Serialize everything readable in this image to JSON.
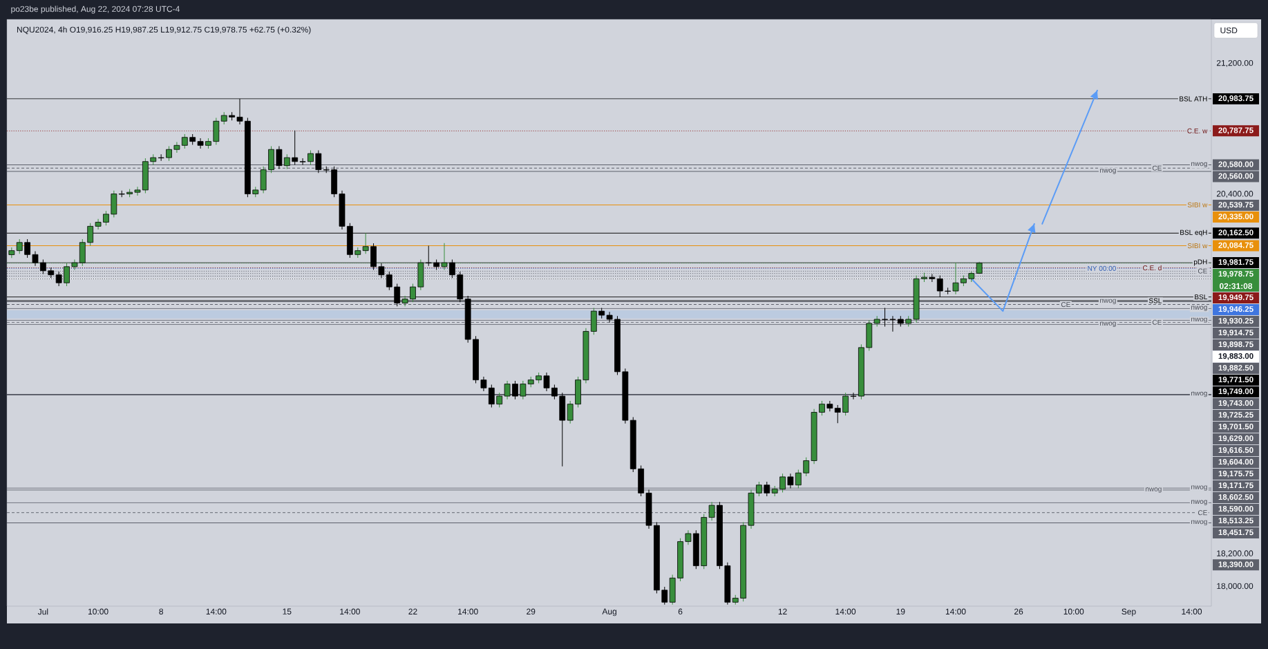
{
  "chart_data": {
    "type": "candlestick",
    "title": "NQU2024, 4h  O19,916.25  H19,987.25  L19,912.75  C19,978.75  +62.75 (+0.32%)",
    "subtitle": "po23be published, Aug 22, 2024 07:28 UTC-4",
    "ylabel": "USD",
    "ylim": [
      17880,
      21470
    ],
    "yticks": [
      {
        "value": 18000,
        "label": "18,000.00"
      },
      {
        "value": 18200,
        "label": "18,200.00"
      },
      {
        "value": 20400,
        "label": "20,400.00"
      },
      {
        "value": 21200,
        "label": "21,200.00"
      }
    ],
    "categories": [
      null,
      null,
      null,
      null,
      "Jul",
      null,
      null,
      null,
      null,
      null,
      null,
      "10:00",
      null,
      null,
      null,
      null,
      null,
      null,
      null,
      "8",
      null,
      null,
      null,
      null,
      null,
      null,
      "14:00",
      null,
      null,
      null,
      null,
      null,
      null,
      null,
      null,
      "15",
      null,
      null,
      null,
      null,
      null,
      null,
      null,
      "14:00",
      null,
      null,
      null,
      null,
      null,
      null,
      null,
      "22",
      null,
      null,
      null,
      null,
      null,
      null,
      "14:00",
      null,
      null,
      null,
      null,
      null,
      null,
      null,
      "29",
      null,
      null,
      null,
      null,
      null,
      null,
      null,
      null,
      null,
      "Aug",
      null,
      null,
      null,
      null,
      null,
      null,
      null,
      null,
      "6",
      null,
      null,
      null,
      null,
      null,
      null,
      null,
      null,
      null,
      null,
      null,
      null,
      "12",
      null,
      null,
      null,
      null,
      null,
      null,
      null,
      "14:00",
      null,
      null,
      null,
      null,
      null,
      null,
      "19",
      null,
      null,
      null,
      null,
      null,
      null,
      "14:00",
      null,
      null,
      null,
      null,
      null,
      null,
      null,
      "26",
      null,
      null,
      null,
      null,
      null,
      null,
      "10:00",
      null,
      null,
      null,
      null,
      null,
      null,
      "Sep",
      null,
      null,
      null,
      null,
      null,
      null,
      null,
      "14:00",
      null,
      null
    ],
    "ohlc": [
      [
        20030,
        20075,
        20010,
        20055
      ],
      [
        20055,
        20125,
        20035,
        20105
      ],
      [
        20105,
        20125,
        20011,
        20031
      ],
      [
        20031,
        20051,
        19961,
        19981
      ],
      [
        19981,
        20001,
        19912,
        19932
      ],
      [
        19932,
        19952,
        19887,
        19907
      ],
      [
        19907,
        19927,
        19838,
        19858
      ],
      [
        19858,
        19977,
        19838,
        19957
      ],
      [
        19957,
        20001,
        19937,
        19981
      ],
      [
        19981,
        20125,
        19961,
        20105
      ],
      [
        20105,
        20224,
        20085,
        20204
      ],
      [
        20204,
        20249,
        20184,
        20229
      ],
      [
        20229,
        20298,
        20209,
        20278
      ],
      [
        20278,
        20422,
        20258,
        20402
      ],
      [
        20402,
        20422,
        20382,
        20400
      ],
      [
        20402,
        20432,
        20382,
        20412
      ],
      [
        20412,
        20446,
        20392,
        20426
      ],
      [
        20426,
        20620,
        20406,
        20600
      ],
      [
        20600,
        20644,
        20580,
        20624
      ],
      [
        20624,
        20644,
        20604,
        20622
      ],
      [
        20624,
        20694,
        20604,
        20674
      ],
      [
        20674,
        20719,
        20654,
        20699
      ],
      [
        20699,
        20768,
        20679,
        20748
      ],
      [
        20748,
        20768,
        20703,
        20723
      ],
      [
        20723,
        20743,
        20679,
        20699
      ],
      [
        20699,
        20743,
        20679,
        20723
      ],
      [
        20723,
        20867,
        20703,
        20847
      ],
      [
        20847,
        20902,
        20827,
        20882
      ],
      [
        20882,
        20902,
        20852,
        20872
      ],
      [
        20872,
        20983.75,
        20827,
        20847
      ],
      [
        20847,
        20867,
        20382,
        20402
      ],
      [
        20402,
        20446,
        20382,
        20426
      ],
      [
        20426,
        20570,
        20406,
        20550
      ],
      [
        20550,
        20694,
        20530,
        20674
      ],
      [
        20674,
        20694,
        20555,
        20575
      ],
      [
        20575,
        20644,
        20555,
        20624
      ],
      [
        20624,
        20790,
        20580,
        20600
      ],
      [
        20600,
        20620,
        20580,
        20598
      ],
      [
        20600,
        20669,
        20580,
        20649
      ],
      [
        20649,
        20669,
        20530,
        20550
      ],
      [
        20550,
        20570,
        20530,
        20548
      ],
      [
        20550,
        20570,
        20382,
        20402
      ],
      [
        20402,
        20422,
        20184,
        20204
      ],
      [
        20204,
        20224,
        20011,
        20031
      ],
      [
        20031,
        20075,
        20011,
        20055
      ],
      [
        20055,
        20162.5,
        20035,
        20080
      ],
      [
        20080,
        20100,
        19937,
        19957
      ],
      [
        19957,
        19977,
        19887,
        19907
      ],
      [
        19907,
        19927,
        19813,
        19833
      ],
      [
        19833,
        19853,
        19714,
        19734
      ],
      [
        19734,
        19779,
        19714,
        19759
      ],
      [
        19759,
        19853,
        19739,
        19833
      ],
      [
        19833,
        20001,
        19813,
        19981
      ],
      [
        19981,
        20084.75,
        19961,
        19979
      ],
      [
        19981,
        20001,
        19937,
        19957
      ],
      [
        19957,
        20101,
        19937,
        19981
      ],
      [
        19981,
        20001,
        19887,
        19907
      ],
      [
        19907,
        19927,
        19739,
        19759
      ],
      [
        19759,
        19779,
        19492,
        19512
      ],
      [
        19512,
        19532,
        19244,
        19264
      ],
      [
        19264,
        19284,
        19195,
        19215
      ],
      [
        19215,
        19235,
        19096,
        19116
      ],
      [
        19116,
        19185,
        19096,
        19165
      ],
      [
        19165,
        19259,
        19145,
        19239
      ],
      [
        19239,
        19259,
        19145,
        19165
      ],
      [
        19165,
        19259,
        19145,
        19239
      ],
      [
        19239,
        19284,
        19219,
        19264
      ],
      [
        19264,
        19309,
        19244,
        19289
      ],
      [
        19289,
        19309,
        19195,
        19215
      ],
      [
        19215,
        19235,
        19145,
        19165
      ],
      [
        19165,
        19185,
        18735,
        19017
      ],
      [
        19017,
        19136,
        18997,
        19116
      ],
      [
        19116,
        19284,
        19096,
        19264
      ],
      [
        19264,
        19581,
        19244,
        19561
      ],
      [
        19561,
        19705,
        19541,
        19685
      ],
      [
        19685,
        19705,
        19640,
        19660
      ],
      [
        19660,
        19680,
        19615,
        19635
      ],
      [
        19635,
        19655,
        19294,
        19314
      ],
      [
        19314,
        19334,
        18997,
        19017
      ],
      [
        19017,
        19037,
        18700,
        18720
      ],
      [
        18720,
        18740,
        18552,
        18572
      ],
      [
        18572,
        18592,
        18354,
        18374
      ],
      [
        18374,
        18394,
        17958,
        17978
      ],
      [
        17978,
        17998,
        17890,
        17904
      ],
      [
        17904,
        18072,
        17890,
        18052
      ],
      [
        18052,
        18295,
        18032,
        18275
      ],
      [
        18275,
        18344,
        18255,
        18324
      ],
      [
        18324,
        18344,
        18107,
        18127
      ],
      [
        18127,
        18443,
        18107,
        18423
      ],
      [
        18423,
        18517,
        18403,
        18497
      ],
      [
        18497,
        18517,
        18107,
        18127
      ],
      [
        18127,
        18147,
        17890,
        17904
      ],
      [
        17904,
        17949,
        17890,
        17929
      ],
      [
        17929,
        18394,
        17909,
        18374
      ],
      [
        18374,
        18592,
        18354,
        18572
      ],
      [
        18572,
        18641,
        18552,
        18621
      ],
      [
        18621,
        18641,
        18552,
        18572
      ],
      [
        18572,
        18616,
        18552,
        18596
      ],
      [
        18596,
        18691,
        18576,
        18671
      ],
      [
        18671,
        18691,
        18601,
        18621
      ],
      [
        18621,
        18715,
        18601,
        18695
      ],
      [
        18695,
        18790,
        18675,
        18770
      ],
      [
        18770,
        19086,
        18750,
        19066
      ],
      [
        19066,
        19136,
        19046,
        19116
      ],
      [
        19116,
        19136,
        19071,
        19091
      ],
      [
        19091,
        19111,
        19000,
        19066
      ],
      [
        19066,
        19185,
        19046,
        19165
      ],
      [
        19165,
        19185,
        19145,
        19163
      ],
      [
        19165,
        19482,
        19145,
        19462
      ],
      [
        19462,
        19630,
        19442,
        19610
      ],
      [
        19610,
        19655,
        19590,
        19635
      ],
      [
        19635,
        19705,
        19590,
        19633
      ],
      [
        19635,
        19655,
        19560,
        19633
      ],
      [
        19635,
        19655,
        19590,
        19610
      ],
      [
        19610,
        19655,
        19590,
        19635
      ],
      [
        19635,
        19903,
        19615,
        19883
      ],
      [
        19883,
        19920,
        19863,
        19892
      ],
      [
        19892,
        19912,
        19863,
        19883
      ],
      [
        19883,
        19903,
        19771.5,
        19808
      ],
      [
        19808,
        19828,
        19788,
        19806
      ],
      [
        19808,
        19981.75,
        19788,
        19858
      ],
      [
        19858,
        19903,
        19838,
        19883
      ],
      [
        19883,
        19927,
        19863,
        19916.25
      ],
      [
        19916.25,
        19987.25,
        19912.75,
        19978.75
      ],
      null,
      null,
      null,
      null,
      null,
      null,
      null,
      null,
      null,
      null,
      null,
      null,
      null,
      null,
      null,
      null,
      null,
      null,
      null,
      null,
      null,
      null,
      null,
      null,
      null,
      null,
      null,
      null,
      null
    ],
    "colors": [
      "#388e3c",
      "#388e3c",
      "#000000",
      "#000000",
      "#000000",
      "#000000",
      "#000000",
      "#388e3c",
      "#388e3c",
      "#388e3c",
      "#388e3c",
      "#388e3c",
      "#388e3c",
      "#388e3c",
      "#000000",
      "#388e3c",
      "#388e3c",
      "#388e3c",
      "#388e3c",
      "#000000",
      "#388e3c",
      "#388e3c",
      "#388e3c",
      "#000000",
      "#000000",
      "#388e3c",
      "#388e3c",
      "#388e3c",
      "#000000",
      "#000000",
      "#000000",
      "#388e3c",
      "#388e3c",
      "#388e3c",
      "#000000",
      "#388e3c",
      "#000000",
      "#000000",
      "#388e3c",
      "#000000",
      "#000000",
      "#000000",
      "#000000",
      "#000000",
      "#388e3c",
      "#388e3c",
      "#000000",
      "#000000",
      "#000000",
      "#000000",
      "#388e3c",
      "#388e3c",
      "#388e3c",
      "#000000",
      "#000000",
      "#388e3c",
      "#000000",
      "#000000",
      "#000000",
      "#000000",
      "#000000",
      "#000000",
      "#388e3c",
      "#388e3c",
      "#000000",
      "#388e3c",
      "#388e3c",
      "#388e3c",
      "#000000",
      "#000000",
      "#000000",
      "#388e3c",
      "#388e3c",
      "#388e3c",
      "#388e3c",
      "#000000",
      "#000000",
      "#000000",
      "#000000",
      "#000000",
      "#000000",
      "#000000",
      "#000000",
      "#000000",
      "#388e3c",
      "#388e3c",
      "#388e3c",
      "#000000",
      "#388e3c",
      "#388e3c",
      "#000000",
      "#000000",
      "#388e3c",
      "#388e3c",
      "#388e3c",
      "#388e3c",
      "#000000",
      "#388e3c",
      "#388e3c",
      "#000000",
      "#388e3c",
      "#388e3c",
      "#388e3c",
      "#388e3c",
      "#000000",
      "#000000",
      "#388e3c",
      "#000000",
      "#388e3c",
      "#388e3c",
      "#388e3c",
      "#000000",
      "#000000",
      "#000000",
      "#388e3c",
      "#388e3c",
      "#388e3c",
      "#000000",
      "#000000",
      "#000000",
      "#388e3c",
      "#388e3c",
      "#388e3c",
      "#388e3c",
      null,
      null,
      null,
      null,
      null,
      null,
      null,
      null,
      null,
      null,
      null,
      null,
      null,
      null,
      null,
      null,
      null,
      null,
      null,
      null,
      null,
      null,
      null,
      null,
      null,
      null,
      null,
      null,
      null
    ],
    "series": [
      {
        "type": "line",
        "color": "#5b9cf6",
        "values": [
          null,
          null,
          null,
          null,
          null,
          null,
          null,
          null,
          null,
          null,
          null,
          null,
          null,
          null,
          null,
          null,
          null,
          null,
          null,
          null,
          null,
          null,
          null,
          null,
          null,
          null,
          null,
          null,
          null,
          null,
          null,
          null,
          null,
          null,
          null,
          null,
          null,
          null,
          null,
          null,
          null,
          null,
          null,
          null,
          null,
          null,
          null,
          null,
          null,
          null,
          null,
          null,
          null,
          null,
          null,
          null,
          null,
          null,
          null,
          null,
          null,
          null,
          null,
          null,
          null,
          null,
          null,
          null,
          null,
          null,
          null,
          null,
          null,
          null,
          null,
          null,
          null,
          null,
          null,
          null,
          null,
          null,
          null,
          null,
          null,
          null,
          null,
          null,
          null,
          null,
          null,
          null,
          null,
          null,
          null,
          null,
          null,
          null,
          null,
          null,
          null,
          null,
          null,
          null,
          null,
          null,
          null,
          null,
          null,
          null,
          null,
          null,
          null,
          null,
          null,
          null,
          null,
          null,
          null,
          null,
          null,
          null,
          19883,
          null,
          null,
          null,
          19685,
          null,
          null,
          null,
          20219,
          null,
          null,
          null,
          null,
          null,
          null,
          null,
          null,
          null,
          null,
          null,
          null,
          null,
          null,
          null,
          null,
          null,
          null,
          null,
          null,
          null,
          null
        ]
      },
      {
        "type": "line",
        "color": "#5b9cf6",
        "values": [
          null,
          null,
          null,
          null,
          null,
          null,
          null,
          null,
          null,
          null,
          null,
          null,
          null,
          null,
          null,
          null,
          null,
          null,
          null,
          null,
          null,
          null,
          null,
          null,
          null,
          null,
          null,
          null,
          null,
          null,
          null,
          null,
          null,
          null,
          null,
          null,
          null,
          null,
          null,
          null,
          null,
          null,
          null,
          null,
          null,
          null,
          null,
          null,
          null,
          null,
          null,
          null,
          null,
          null,
          null,
          null,
          null,
          null,
          null,
          null,
          null,
          null,
          null,
          null,
          null,
          null,
          null,
          null,
          null,
          null,
          null,
          null,
          null,
          null,
          null,
          null,
          null,
          null,
          null,
          null,
          null,
          null,
          null,
          null,
          null,
          null,
          null,
          null,
          null,
          null,
          null,
          null,
          null,
          null,
          null,
          null,
          null,
          null,
          null,
          null,
          null,
          null,
          null,
          null,
          null,
          null,
          null,
          null,
          null,
          null,
          null,
          null,
          null,
          null,
          null,
          null,
          null,
          null,
          null,
          null,
          null,
          null,
          null,
          null,
          null,
          null,
          null,
          null,
          null,
          null,
          null,
          20219,
          null,
          null,
          null,
          null,
          null,
          null,
          21035,
          null,
          null,
          null,
          null,
          null,
          null,
          null,
          null,
          null,
          null,
          null,
          null,
          null,
          null
        ]
      }
    ],
    "bands": [
      {
        "axis": "y",
        "from": 19640,
        "to": 19690,
        "color": "#bccbe0"
      }
    ],
    "ref_lines": [
      {
        "axis": "y",
        "value": 20983.75,
        "label": "BSL ATH",
        "color": "#000000",
        "line_style": "solid"
      },
      {
        "axis": "y",
        "value": 20787.75,
        "label": "C.E. w",
        "color": "#8b1a1a",
        "line_style": "dotted"
      },
      {
        "axis": "y",
        "value": 20580.0,
        "label": "nwog",
        "color": "#5d606b",
        "line_style": "solid"
      },
      {
        "axis": "y",
        "value": 20560.0,
        "label": "CE",
        "color": "#5d606b",
        "line_style": "dashed"
      },
      {
        "axis": "y",
        "value": 20539.75,
        "label": "nwog",
        "color": "#5d606b",
        "line_style": "solid"
      },
      {
        "axis": "y",
        "value": 20335.0,
        "label": "SIBI w",
        "color": "#e8900c",
        "line_style": "solid"
      },
      {
        "axis": "y",
        "value": 20162.5,
        "label": "BSL eqH",
        "color": "#000000",
        "line_style": "solid"
      },
      {
        "axis": "y",
        "value": 20084.75,
        "label": "SIBI w",
        "color": "#e8900c",
        "line_style": "solid"
      },
      {
        "axis": "y",
        "value": 19981.75,
        "label": "pDH",
        "color": "#000000",
        "line_style": "solid"
      },
      {
        "axis": "y",
        "value": 19978.75,
        "label": null,
        "color": "#388e3c",
        "line_style": "dotted"
      },
      {
        "axis": "y",
        "value": 19949.75,
        "label": "C.E. d",
        "color": "#8b1a1a",
        "line_style": "dotted"
      },
      {
        "axis": "y",
        "value": 19946.25,
        "label": null,
        "color": "#3f76e0",
        "line_style": "dotted"
      },
      {
        "axis": "y",
        "value": 19930.25,
        "label": "CE",
        "color": "#5d606b",
        "line_style": "dotted"
      },
      {
        "axis": "y",
        "value": 19914.75,
        "label": null,
        "color": "#5d606b",
        "line_style": "dotted"
      },
      {
        "axis": "y",
        "value": 19898.75,
        "label": null,
        "color": "#5d606b",
        "line_style": "dotted"
      },
      {
        "axis": "y",
        "value": 19883.0,
        "label": null,
        "color": "#ffffff",
        "line_style": "solid"
      },
      {
        "axis": "y",
        "value": 19882.5,
        "label": null,
        "color": "#5d606b",
        "line_style": "dotted"
      },
      {
        "axis": "y",
        "value": 19771.5,
        "label": "BSL",
        "color": "#000000",
        "line_style": "solid"
      },
      {
        "axis": "y",
        "value": 19749.0,
        "label": "SSL",
        "color": "#000000",
        "line_style": "solid"
      },
      {
        "axis": "y",
        "value": 19743.0,
        "label": "nwog",
        "color": "#5d606b",
        "line_style": "solid"
      },
      {
        "axis": "y",
        "value": 19725.25,
        "label": "CE",
        "color": "#5d606b",
        "line_style": "dashed"
      },
      {
        "axis": "y",
        "value": 19701.5,
        "label": "nwog",
        "color": "#5d606b",
        "line_style": "solid"
      },
      {
        "axis": "y",
        "value": 19629.0,
        "label": "nwog",
        "color": "#5d606b",
        "line_style": "solid"
      },
      {
        "axis": "y",
        "value": 19616.5,
        "label": "CE",
        "color": "#5d606b",
        "line_style": "dashed"
      },
      {
        "axis": "y",
        "value": 19604.0,
        "label": "nwog",
        "color": "#5d606b",
        "line_style": "solid"
      },
      {
        "axis": "y",
        "value": 19175.75,
        "label": "nwog",
        "color": "#5d606b",
        "line_style": "solid"
      },
      {
        "axis": "y",
        "value": 19171.75,
        "label": null,
        "color": "#5d606b",
        "line_style": "solid"
      },
      {
        "axis": "y",
        "value": 18602.5,
        "label": "nwog",
        "color": "#5d606b",
        "line_style": "solid"
      },
      {
        "axis": "y",
        "value": 18590.0,
        "label": "nwog",
        "color": "#5d606b",
        "line_style": "solid"
      },
      {
        "axis": "y",
        "value": 18513.25,
        "label": "nwog",
        "color": "#5d606b",
        "line_style": "solid"
      },
      {
        "axis": "y",
        "value": 18451.75,
        "label": "CE",
        "color": "#5d606b",
        "line_style": "dashed"
      },
      {
        "axis": "y",
        "value": 18390.0,
        "label": "nwog",
        "color": "#5d606b",
        "line_style": "solid"
      }
    ],
    "annotations": [
      "20,983.75",
      "20,787.75",
      "20,580.00",
      "20,560.00",
      "20,539.75",
      "20,335.00",
      "20,162.50",
      "20,084.75",
      "19,981.75",
      "19,978.75",
      "19,949.75",
      "19,946.25",
      "19,930.25",
      "19,914.75",
      "19,898.75",
      "19,883.00",
      "19,882.50",
      "19,771.50",
      "19,749.00",
      "19,743.00",
      "19,725.25",
      "19,701.50",
      "19,629.00",
      "19,616.50",
      "19,604.00",
      "19,175.75",
      "19,171.75",
      "18,602.50",
      "18,590.00",
      "18,513.25",
      "18,451.75",
      "18,390.00",
      "02:31:08",
      {
        "text": "NY 00:00",
        "y": 19946.25
      }
    ]
  }
}
